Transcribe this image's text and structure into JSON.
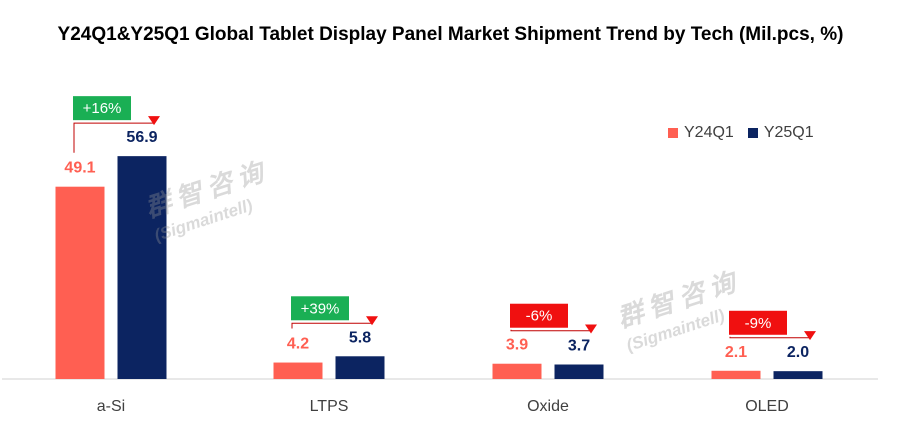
{
  "chart_data": {
    "type": "bar",
    "title": "Y24Q1&Y25Q1 Global Tablet Display Panel Market Shipment Trend by Tech (Mil.pcs, %)",
    "categories": [
      "a-Si",
      "LTPS",
      "Oxide",
      "OLED"
    ],
    "series": [
      {
        "name": "Y24Q1",
        "values": [
          49.1,
          4.2,
          3.9,
          2.1
        ],
        "color": "#FF5F52"
      },
      {
        "name": "Y25Q1",
        "values": [
          56.9,
          5.8,
          3.7,
          2.0
        ],
        "color": "#0C2461"
      }
    ],
    "value_labels": [
      [
        "49.1",
        "4.2",
        "3.9",
        "2.1"
      ],
      [
        "56.9",
        "5.8",
        "3.7",
        "2.0"
      ]
    ],
    "change_labels": [
      "+16%",
      "+39%",
      "-6%",
      "-9%"
    ],
    "change_colors": [
      "#1AAF54",
      "#1AAF54",
      "#F01010",
      "#F01010"
    ],
    "ylim": [
      0,
      60
    ],
    "legend_position": "top-right",
    "grid": false
  },
  "watermark": {
    "chinese": "群智咨询",
    "english": "(Sigmaintell)"
  }
}
